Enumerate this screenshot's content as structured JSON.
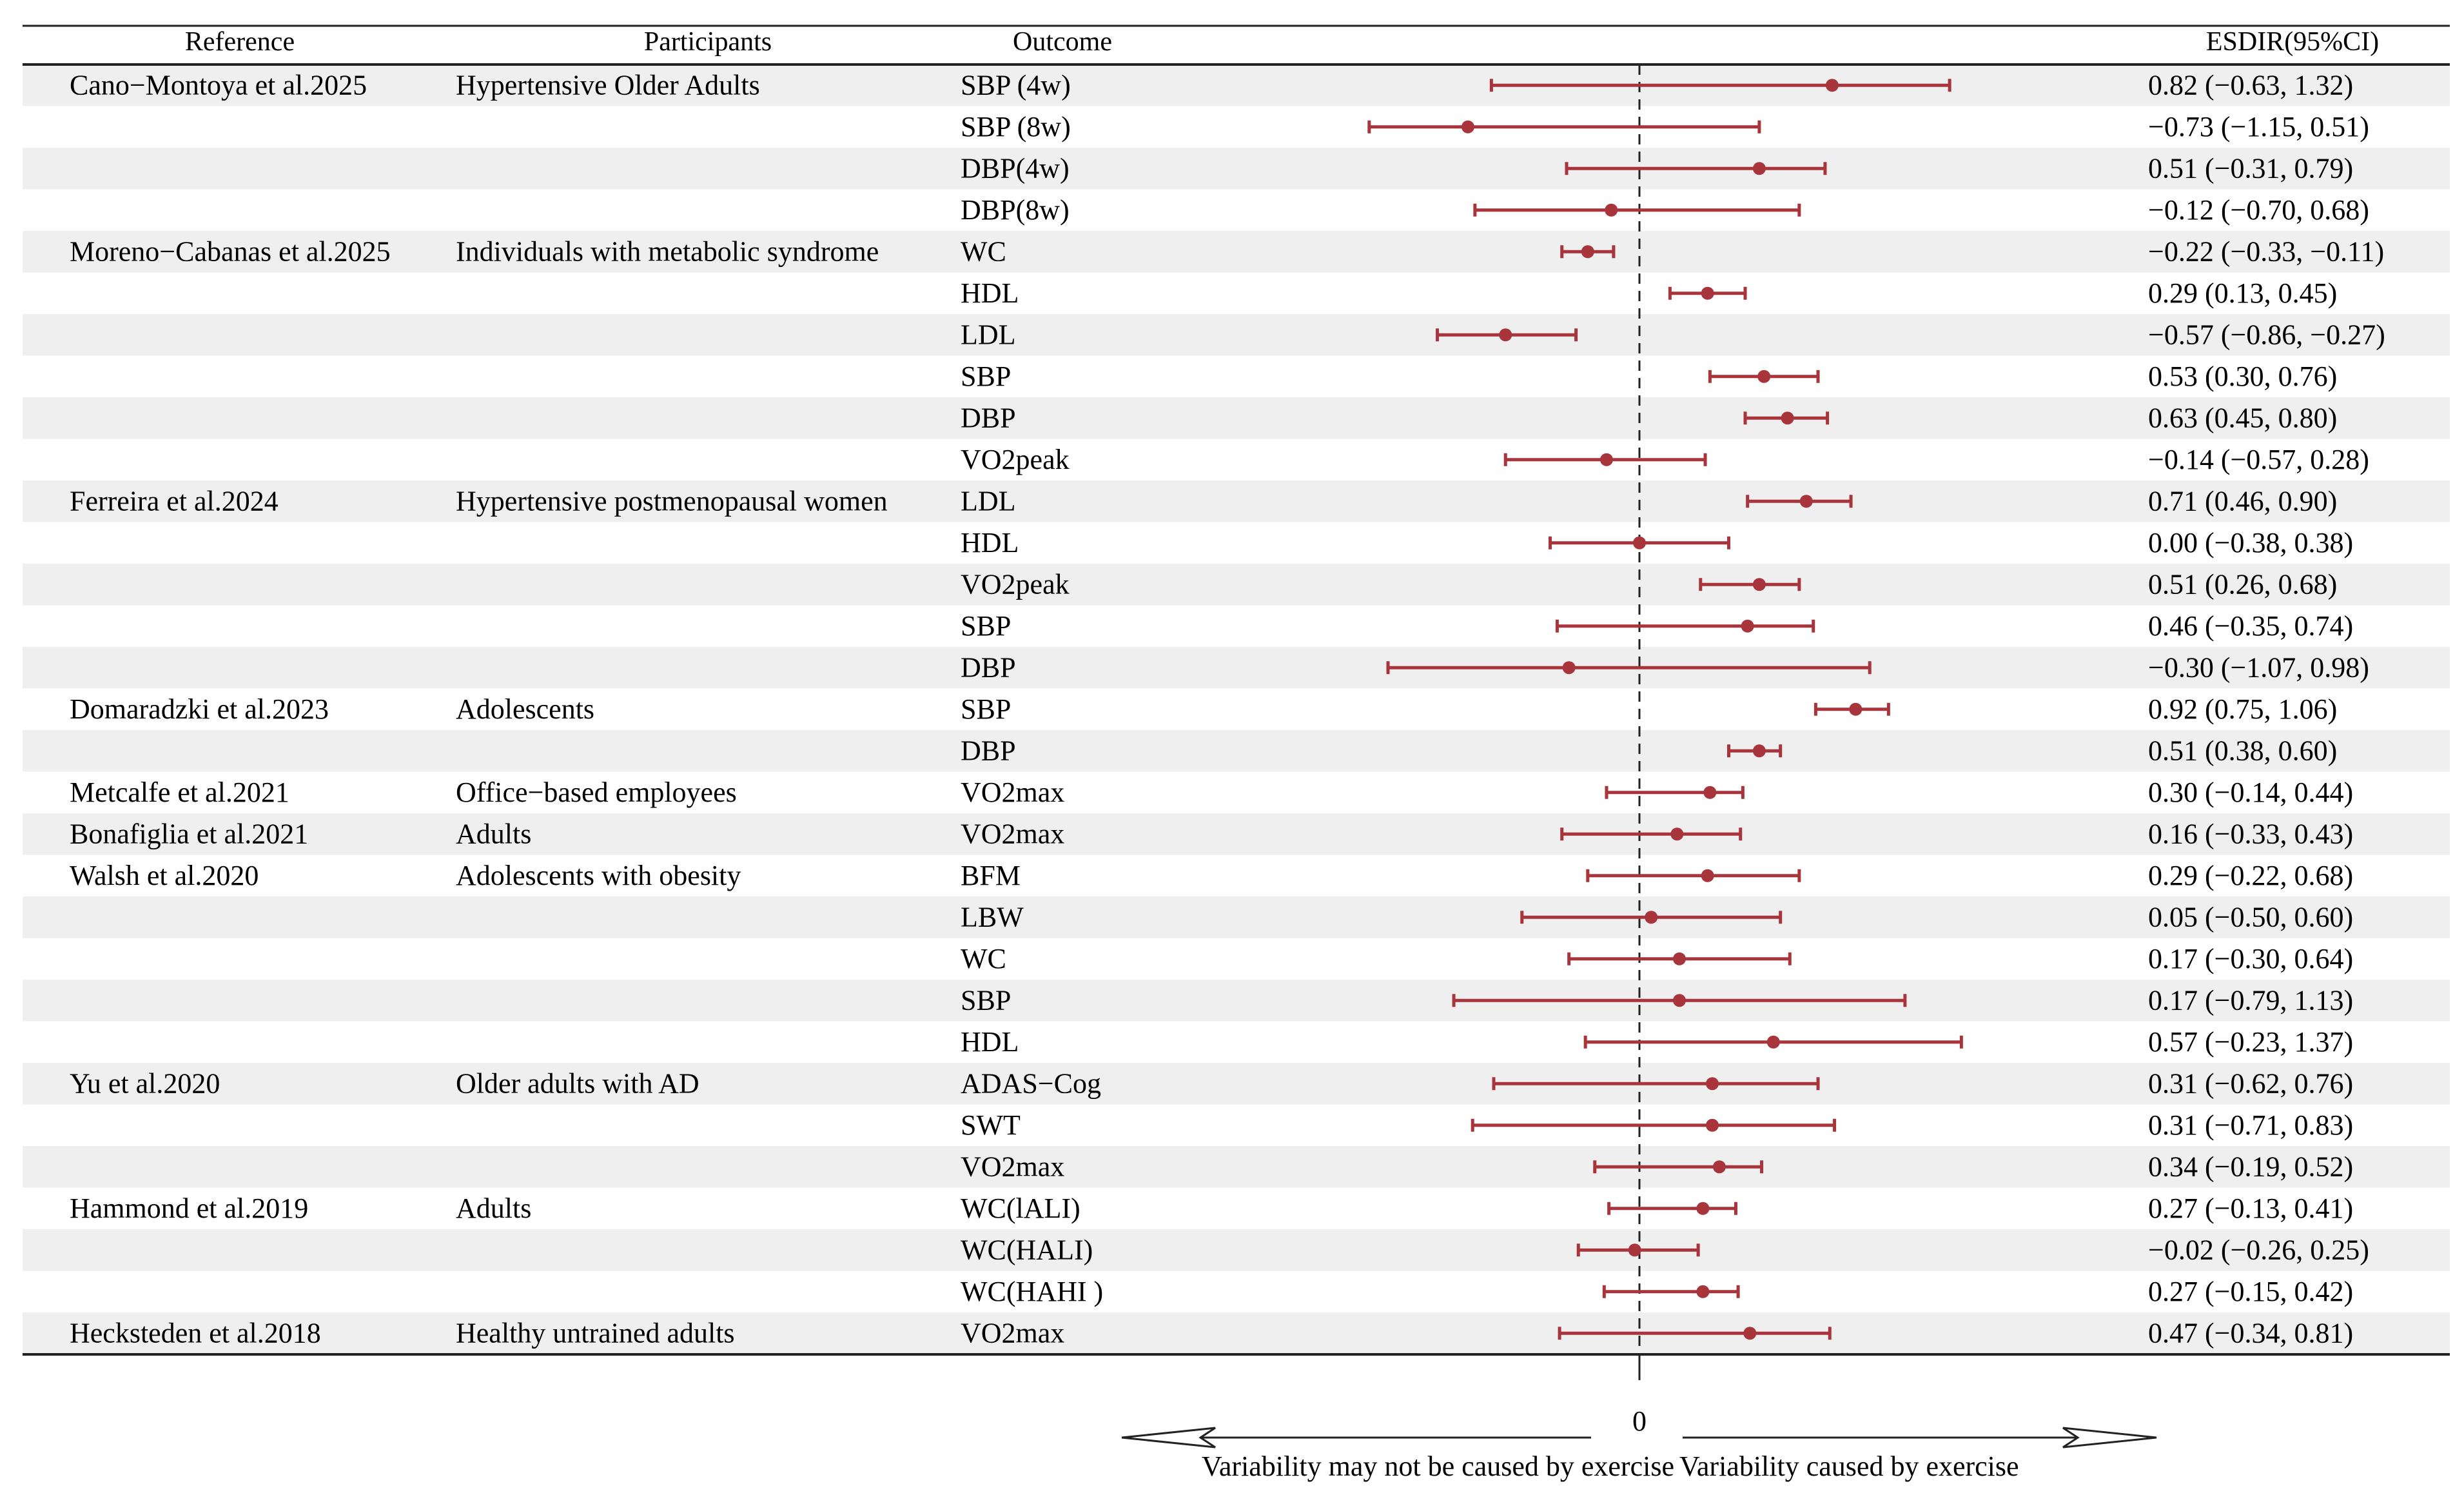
{
  "headers": {
    "reference": "Reference",
    "participants": "Participants",
    "outcome": "Outcome",
    "esdir": "ESDIR(95%CI)"
  },
  "x_axis": {
    "zero_label": "0",
    "left_label": "Variability may not be caused by exercise",
    "right_label": "Variability caused by exercise"
  },
  "colors": {
    "marker": "#a8343c",
    "stripe": "#efefef",
    "axis": "#222222"
  },
  "chart_data": {
    "type": "forest",
    "xlim": [
      -1.5,
      1.75
    ],
    "reference_line": 0,
    "rows": [
      {
        "reference": "Cano−Montoya et al.2025",
        "participants": "Hypertensive Older Adults",
        "outcome": "SBP (4w)",
        "est": 0.82,
        "lo": -0.63,
        "hi": 1.32,
        "ci": "0.82 (−0.63, 1.32)"
      },
      {
        "reference": "",
        "participants": "",
        "outcome": "SBP (8w)",
        "est": -0.73,
        "lo": -1.15,
        "hi": 0.51,
        "ci": "−0.73 (−1.15, 0.51)"
      },
      {
        "reference": "",
        "participants": "",
        "outcome": "DBP(4w)",
        "est": 0.51,
        "lo": -0.31,
        "hi": 0.79,
        "ci": "0.51 (−0.31, 0.79)"
      },
      {
        "reference": "",
        "participants": "",
        "outcome": "DBP(8w)",
        "est": -0.12,
        "lo": -0.7,
        "hi": 0.68,
        "ci": "−0.12 (−0.70, 0.68)"
      },
      {
        "reference": "Moreno−Cabanas et al.2025",
        "participants": "Individuals with metabolic syndrome",
        "outcome": "WC",
        "est": -0.22,
        "lo": -0.33,
        "hi": -0.11,
        "ci": "−0.22 (−0.33, −0.11)"
      },
      {
        "reference": "",
        "participants": "",
        "outcome": "HDL",
        "est": 0.29,
        "lo": 0.13,
        "hi": 0.45,
        "ci": "0.29 (0.13, 0.45)"
      },
      {
        "reference": "",
        "participants": "",
        "outcome": "LDL",
        "est": -0.57,
        "lo": -0.86,
        "hi": -0.27,
        "ci": "−0.57 (−0.86, −0.27)"
      },
      {
        "reference": "",
        "participants": "",
        "outcome": "SBP",
        "est": 0.53,
        "lo": 0.3,
        "hi": 0.76,
        "ci": "0.53 (0.30, 0.76)"
      },
      {
        "reference": "",
        "participants": "",
        "outcome": "DBP",
        "est": 0.63,
        "lo": 0.45,
        "hi": 0.8,
        "ci": "0.63 (0.45, 0.80)"
      },
      {
        "reference": "",
        "participants": "",
        "outcome": "VO2peak",
        "est": -0.14,
        "lo": -0.57,
        "hi": 0.28,
        "ci": "−0.14 (−0.57, 0.28)"
      },
      {
        "reference": "Ferreira et al.2024",
        "participants": "Hypertensive postmenopausal women",
        "outcome": "LDL",
        "est": 0.71,
        "lo": 0.46,
        "hi": 0.9,
        "ci": "0.71 (0.46, 0.90)"
      },
      {
        "reference": "",
        "participants": "",
        "outcome": "HDL",
        "est": 0.0,
        "lo": -0.38,
        "hi": 0.38,
        "ci": "0.00 (−0.38, 0.38)"
      },
      {
        "reference": "",
        "participants": "",
        "outcome": "VO2peak",
        "est": 0.51,
        "lo": 0.26,
        "hi": 0.68,
        "ci": "0.51 (0.26, 0.68)"
      },
      {
        "reference": "",
        "participants": "",
        "outcome": "SBP",
        "est": 0.46,
        "lo": -0.35,
        "hi": 0.74,
        "ci": "0.46 (−0.35, 0.74)"
      },
      {
        "reference": "",
        "participants": "",
        "outcome": "DBP",
        "est": -0.3,
        "lo": -1.07,
        "hi": 0.98,
        "ci": "−0.30 (−1.07, 0.98)"
      },
      {
        "reference": "Domaradzki et al.2023",
        "participants": "Adolescents",
        "outcome": "SBP",
        "est": 0.92,
        "lo": 0.75,
        "hi": 1.06,
        "ci": "0.92 (0.75, 1.06)"
      },
      {
        "reference": "",
        "participants": "",
        "outcome": "DBP",
        "est": 0.51,
        "lo": 0.38,
        "hi": 0.6,
        "ci": "0.51 (0.38, 0.60)"
      },
      {
        "reference": "Metcalfe et al.2021",
        "participants": "Office−based employees",
        "outcome": "VO2max",
        "est": 0.3,
        "lo": -0.14,
        "hi": 0.44,
        "ci": "0.30 (−0.14, 0.44)"
      },
      {
        "reference": "Bonafiglia et al.2021",
        "participants": "Adults",
        "outcome": "VO2max",
        "est": 0.16,
        "lo": -0.33,
        "hi": 0.43,
        "ci": "0.16 (−0.33, 0.43)"
      },
      {
        "reference": "Walsh et al.2020",
        "participants": "Adolescents with obesity",
        "outcome": "BFM",
        "est": 0.29,
        "lo": -0.22,
        "hi": 0.68,
        "ci": "0.29 (−0.22, 0.68)"
      },
      {
        "reference": "",
        "participants": "",
        "outcome": "LBW",
        "est": 0.05,
        "lo": -0.5,
        "hi": 0.6,
        "ci": "0.05 (−0.50, 0.60)"
      },
      {
        "reference": "",
        "participants": "",
        "outcome": "WC",
        "est": 0.17,
        "lo": -0.3,
        "hi": 0.64,
        "ci": "0.17 (−0.30, 0.64)"
      },
      {
        "reference": "",
        "participants": "",
        "outcome": "SBP",
        "est": 0.17,
        "lo": -0.79,
        "hi": 1.13,
        "ci": "0.17 (−0.79, 1.13)"
      },
      {
        "reference": "",
        "participants": "",
        "outcome": "HDL",
        "est": 0.57,
        "lo": -0.23,
        "hi": 1.37,
        "ci": "0.57 (−0.23, 1.37)"
      },
      {
        "reference": "Yu et al.2020",
        "participants": "Older adults with  AD",
        "outcome": "ADAS−Cog",
        "est": 0.31,
        "lo": -0.62,
        "hi": 0.76,
        "ci": "0.31 (−0.62, 0.76)"
      },
      {
        "reference": "",
        "participants": "",
        "outcome": "SWT",
        "est": 0.31,
        "lo": -0.71,
        "hi": 0.83,
        "ci": "0.31 (−0.71, 0.83)"
      },
      {
        "reference": "",
        "participants": "",
        "outcome": "VO2max",
        "est": 0.34,
        "lo": -0.19,
        "hi": 0.52,
        "ci": "0.34 (−0.19, 0.52)"
      },
      {
        "reference": "Hammond et al.2019",
        "participants": "Adults",
        "outcome": "WC(lALI)",
        "est": 0.27,
        "lo": -0.13,
        "hi": 0.41,
        "ci": "0.27 (−0.13, 0.41)"
      },
      {
        "reference": "",
        "participants": "",
        "outcome": "WC(HALI)",
        "est": -0.02,
        "lo": -0.26,
        "hi": 0.25,
        "ci": "−0.02 (−0.26, 0.25)"
      },
      {
        "reference": "",
        "participants": "",
        "outcome": "WC(HAHI )",
        "est": 0.27,
        "lo": -0.15,
        "hi": 0.42,
        "ci": "0.27 (−0.15, 0.42)"
      },
      {
        "reference": "Hecksteden et al.2018",
        "participants": "Healthy untrained adults",
        "outcome": "VO2max",
        "est": 0.47,
        "lo": -0.34,
        "hi": 0.81,
        "ci": "0.47 (−0.34, 0.81)"
      }
    ]
  }
}
